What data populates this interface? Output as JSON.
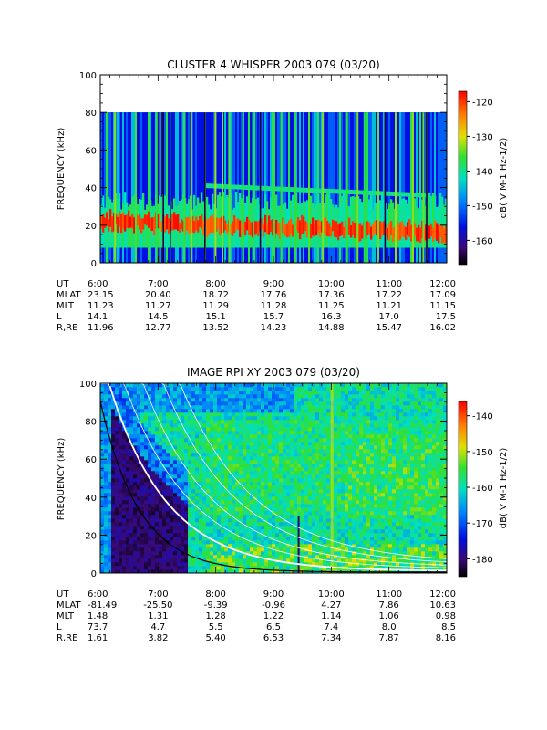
{
  "chart_data": [
    {
      "type": "heatmap",
      "title": "CLUSTER 4 WHISPER 2003 079 (03/20)",
      "ylabel": "FREQUENCY (kHz)",
      "ylim": [
        0,
        100
      ],
      "yticks": [
        "0",
        "20",
        "40",
        "60",
        "80",
        "100"
      ],
      "data_ceiling_khz": 80,
      "xticks": [
        "6:00",
        "7:00",
        "8:00",
        "9:00",
        "10:00",
        "11:00",
        "12:00"
      ],
      "colorbar": {
        "label": "dB( V M-1 Hz-1/2)",
        "ticks": [
          "-120",
          "-130",
          "-140",
          "-150",
          "-160"
        ],
        "tick_values": [
          -120,
          -130,
          -140,
          -150,
          -160
        ],
        "range": [
          -167,
          -117
        ]
      },
      "ephemeris": [
        {
          "label": "UT",
          "values": [
            "6:00",
            "7:00",
            "8:00",
            "9:00",
            "10:00",
            "11:00",
            "12:00"
          ]
        },
        {
          "label": "MLAT",
          "values": [
            "23.15",
            "20.40",
            "18.72",
            "17.76",
            "17.36",
            "17.22",
            "17.09"
          ]
        },
        {
          "label": "MLT",
          "values": [
            "11.23",
            "11.27",
            "11.29",
            "11.28",
            "11.25",
            "11.21",
            "11.15"
          ]
        },
        {
          "label": "L",
          "values": [
            "14.1",
            "14.5",
            "15.1",
            "15.7",
            "16.3",
            "17.0",
            "17.5"
          ]
        },
        {
          "label": "R,RE",
          "values": [
            "11.96",
            "12.77",
            "13.52",
            "14.23",
            "14.88",
            "15.47",
            "16.02"
          ]
        }
      ]
    },
    {
      "type": "heatmap",
      "title": "IMAGE RPI XY 2003 079 (03/20)",
      "ylabel": "FREQUENCY (kHz)",
      "ylim": [
        0,
        100
      ],
      "yticks": [
        "0",
        "20",
        "40",
        "60",
        "80",
        "100"
      ],
      "xticks": [
        "6:00",
        "7:00",
        "8:00",
        "9:00",
        "10:00",
        "11:00",
        "12:00"
      ],
      "colorbar": {
        "label": "dB( V M-1 Hz-1/2)",
        "ticks": [
          "-140",
          "-150",
          "-160",
          "-170",
          "-180"
        ],
        "tick_values": [
          -140,
          -150,
          -160,
          -170,
          -180
        ],
        "range": [
          -185,
          -136
        ]
      },
      "ephemeris": [
        {
          "label": "UT",
          "values": [
            "6:00",
            "7:00",
            "8:00",
            "9:00",
            "10:00",
            "11:00",
            "12:00"
          ]
        },
        {
          "label": "MLAT",
          "values": [
            "-81.49",
            "-25.50",
            "-9.39",
            "-0.96",
            "4.27",
            "7.86",
            "10.63"
          ]
        },
        {
          "label": "MLT",
          "values": [
            "1.48",
            "1.31",
            "1.28",
            "1.22",
            "1.14",
            "1.06",
            "0.98"
          ]
        },
        {
          "label": "L",
          "values": [
            "73.7",
            "4.7",
            "5.5",
            "6.5",
            "7.4",
            "8.0",
            "8.5"
          ]
        },
        {
          "label": "R,RE",
          "values": [
            "1.61",
            "3.82",
            "5.40",
            "6.53",
            "7.34",
            "7.87",
            "8.16"
          ]
        }
      ]
    }
  ]
}
